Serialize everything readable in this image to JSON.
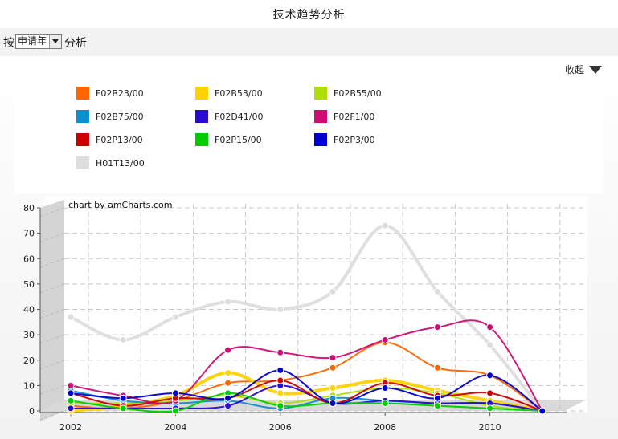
{
  "page": {
    "title": "技术趋势分析",
    "filter_before": "按",
    "filter_select_value": "申请年",
    "filter_after": "分析",
    "collapse_label": "收起",
    "credit": "chart by amCharts.com"
  },
  "chart_data": {
    "type": "line",
    "title": "",
    "xlabel": "",
    "ylabel": "",
    "ylim": [
      0,
      80
    ],
    "y_ticks": [
      0,
      10,
      20,
      30,
      40,
      50,
      60,
      70,
      80
    ],
    "x": [
      2002,
      2003,
      2004,
      2005,
      2006,
      2007,
      2008,
      2009,
      2010,
      2011
    ],
    "x_tick_labels": [
      "2002",
      "2004",
      "2006",
      "2008",
      "2010"
    ],
    "grid": true,
    "legend_placement": "top",
    "series": [
      {
        "name": "F02B23/00",
        "color": "#FF6600",
        "values": [
          2,
          1,
          4,
          11,
          12,
          17,
          27,
          17,
          14,
          0
        ]
      },
      {
        "name": "F02B53/00",
        "color": "#FCD202",
        "values": [
          0,
          2,
          6,
          15,
          7,
          9,
          12,
          8,
          4,
          0
        ]
      },
      {
        "name": "F02B55/00",
        "color": "#B0DE09",
        "values": [
          3,
          3,
          4,
          6,
          3,
          6,
          9,
          7,
          2,
          0
        ]
      },
      {
        "name": "F02B75/00",
        "color": "#0D8ECF",
        "values": [
          8,
          4,
          3,
          4,
          1,
          5,
          4,
          3,
          3,
          0
        ]
      },
      {
        "name": "F02D41/00",
        "color": "#2A0CD0",
        "values": [
          1,
          1,
          1,
          2,
          10,
          3,
          4,
          3,
          3,
          0
        ]
      },
      {
        "name": "F02F1/00",
        "color": "#CD0D74",
        "values": [
          10,
          6,
          4,
          24,
          23,
          21,
          28,
          33,
          33,
          0
        ]
      },
      {
        "name": "F02P13/00",
        "color": "#CC0000",
        "values": [
          7,
          2,
          5,
          5,
          12,
          3,
          11,
          6,
          7,
          0
        ]
      },
      {
        "name": "F02P15/00",
        "color": "#00CC00",
        "values": [
          4,
          1,
          0,
          7,
          2,
          3,
          3,
          2,
          1,
          0
        ]
      },
      {
        "name": "F02P3/00",
        "color": "#0000CC",
        "values": [
          7,
          5,
          7,
          5,
          16,
          3,
          9,
          5,
          14,
          0
        ]
      },
      {
        "name": "H01T13/00",
        "color": "#DDDDDD",
        "values": [
          37,
          28,
          37,
          43,
          40,
          47,
          73,
          47,
          26,
          0
        ]
      }
    ]
  }
}
